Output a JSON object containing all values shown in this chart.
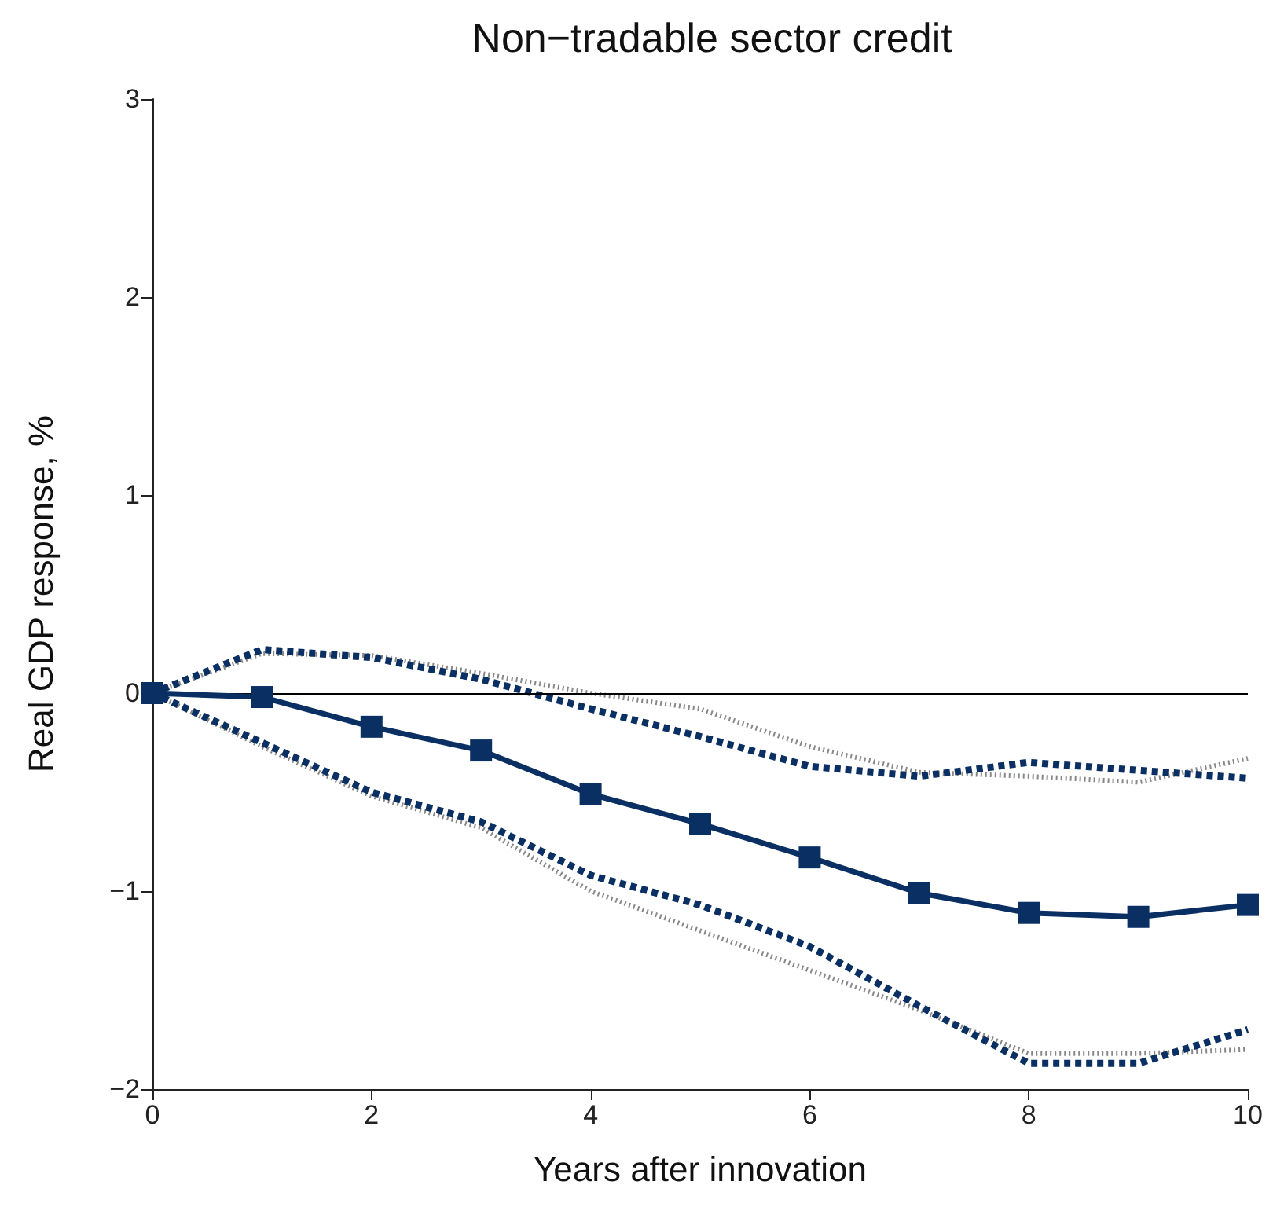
{
  "chart_data": {
    "type": "line",
    "title": "Non−tradable sector credit",
    "xlabel": "Years after innovation",
    "ylabel": "Real GDP response, %",
    "x": [
      0,
      1,
      2,
      3,
      4,
      5,
      6,
      7,
      8,
      9,
      10
    ],
    "xlim": [
      0,
      10
    ],
    "xticks": [
      0,
      2,
      4,
      6,
      8,
      10
    ],
    "ylim": [
      -2,
      3
    ],
    "yticks": [
      -2,
      -1,
      0,
      1,
      2,
      3
    ],
    "grid": false,
    "ref_lines": [
      {
        "axis": "y",
        "value": 0,
        "color": "#000000",
        "line_style": "solid"
      }
    ],
    "series": [
      {
        "color": "#888888",
        "line_style": "dotted",
        "marker": "none",
        "values": [
          0,
          0.2,
          0.19,
          0.1,
          0.0,
          -0.08,
          -0.27,
          -0.4,
          -0.42,
          -0.45,
          -0.33
        ]
      },
      {
        "color": "#888888",
        "line_style": "dotted",
        "marker": "none",
        "values": [
          0,
          -0.27,
          -0.52,
          -0.68,
          -1.0,
          -1.2,
          -1.4,
          -1.6,
          -1.82,
          -1.82,
          -1.8
        ]
      },
      {
        "color": "#0a2f63",
        "line_style": "dashed",
        "marker": "none",
        "values": [
          0,
          0.22,
          0.18,
          0.07,
          -0.08,
          -0.22,
          -0.37,
          -0.42,
          -0.35,
          -0.39,
          -0.43
        ]
      },
      {
        "color": "#0a2f63",
        "line_style": "dashed",
        "marker": "none",
        "values": [
          0,
          -0.25,
          -0.5,
          -0.65,
          -0.92,
          -1.07,
          -1.28,
          -1.58,
          -1.87,
          -1.87,
          -1.7
        ]
      },
      {
        "color": "#0a2f63",
        "line_style": "solid",
        "marker": "square",
        "values": [
          0,
          -0.02,
          -0.17,
          -0.29,
          -0.51,
          -0.66,
          -0.83,
          -1.01,
          -1.11,
          -1.13,
          -1.07
        ]
      }
    ]
  }
}
